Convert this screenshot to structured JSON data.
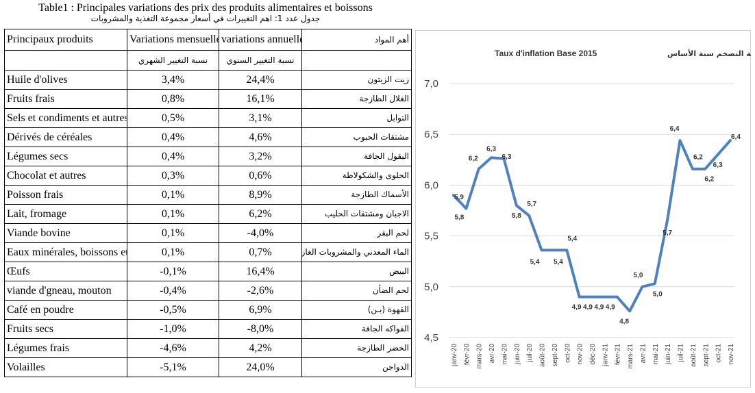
{
  "table": {
    "caption_fr": "Table1 : Principales variations des prix des produits alimentaires et boissons",
    "caption_ar": "جدول عدد 1: اهم التغييرات في أسعار مجموعة التغذية والمشروبات",
    "headers": {
      "product_fr": "Principaux produits",
      "monthly_fr": "Variations mensuelles",
      "annual_fr": "variations annuelles",
      "product_ar": "أهم المواد",
      "monthly_ar": "نسبة التغيير الشهري",
      "annual_ar": "نسبة التغيير السنوي"
    },
    "rows": [
      {
        "fr": "Huile d'olives",
        "monthly": "3,4%",
        "annual": "24,4%",
        "ar": "زيت الزيتون"
      },
      {
        "fr": "Fruits frais",
        "monthly": "0,8%",
        "annual": "16,1%",
        "ar": "الغلال الطازجة"
      },
      {
        "fr": "Sels et condiments et autres",
        "monthly": "0,5%",
        "annual": "3,1%",
        "ar": "التوابل"
      },
      {
        "fr": "Dérivés de céréales",
        "monthly": "0,4%",
        "annual": "4,6%",
        "ar": "مشتقات الحبوب"
      },
      {
        "fr": "Légumes secs",
        "monthly": "0,4%",
        "annual": "3,2%",
        "ar": "البقول الجافة"
      },
      {
        "fr": "Chocolat et autres",
        "monthly": "0,3%",
        "annual": "0,6%",
        "ar": "الحلوى والشكولاطة"
      },
      {
        "fr": "Poisson frais",
        "monthly": "0,1%",
        "annual": "8,9%",
        "ar": "الأسماك الطازجة"
      },
      {
        "fr": "Lait, fromage",
        "monthly": "0,1%",
        "annual": "6,2%",
        "ar": "الاجبان ومشتقات الحليب"
      },
      {
        "fr": "Viande bovine",
        "monthly": "0,1%",
        "annual": "-4,0%",
        "ar": "لحم البقر"
      },
      {
        "fr": "Eaux minérales, boissons et ju",
        "monthly": "0,1%",
        "annual": "0,7%",
        "ar": "الماء المعدني والمشروبات الغازية"
      },
      {
        "fr": "Œufs",
        "monthly": "-0,1%",
        "annual": "16,4%",
        "ar": "البيض"
      },
      {
        "fr": "viande d'gneau, mouton",
        "monthly": "-0,4%",
        "annual": "-2,6%",
        "ar": "لحم الضأن"
      },
      {
        "fr": "Café en poudre",
        "monthly": "-0,5%",
        "annual": "6,9%",
        "ar": "القهوة (بـن)"
      },
      {
        "fr": "Fruits secs",
        "monthly": "-1,0%",
        "annual": "-8,0%",
        "ar": "الفواكه الجافة"
      },
      {
        "fr": "Légumes frais",
        "monthly": "-4,6%",
        "annual": "4,2%",
        "ar": "الخضر الطازجة"
      },
      {
        "fr": "Volailles",
        "monthly": "-5,1%",
        "annual": "24,0%",
        "ar": "الدواجن"
      }
    ]
  },
  "chart_data": {
    "type": "line",
    "title": "Taux d'inflation Base 2015",
    "title_ar": "نسبة التضخم سنة الأساس",
    "x": [
      "janv-20",
      "févr-20",
      "mars-20",
      "avr-20",
      "mai-20",
      "juin-20",
      "juil-20",
      "août-20",
      "sept-20",
      "oct-20",
      "nov-20",
      "déc-20",
      "janv-21",
      "févr-21",
      "mars-21",
      "avr-21",
      "mai-21",
      "juin-21",
      "juil-21",
      "août-21",
      "sept-21",
      "oct-21",
      "nov-21"
    ],
    "values": [
      5.9,
      5.77,
      6.16,
      6.27,
      6.26,
      5.8,
      5.7,
      5.36,
      5.36,
      5.36,
      4.9,
      4.9,
      4.9,
      4.9,
      4.76,
      5.0,
      5.03,
      5.66,
      6.44,
      6.16,
      6.16,
      6.3,
      6.44
    ],
    "data_labels": [
      "5,9",
      "5,8",
      "6,2",
      "6,3",
      "6,3",
      "5,8",
      "5,7",
      "5,4",
      "5,4",
      "5,4",
      "4,9",
      "4,9",
      "4,9",
      "4,9",
      "4,8",
      "5,0",
      "5,0",
      "5,7",
      "6,4",
      "6,2",
      "6,2",
      "6,3",
      "6,4"
    ],
    "y_ticks": [
      "7,0",
      "6,5",
      "6,0",
      "5,5",
      "5,0",
      "4,5"
    ],
    "ylim": [
      4.5,
      7.0
    ],
    "grid": true,
    "line_color": "#4f81bd"
  }
}
